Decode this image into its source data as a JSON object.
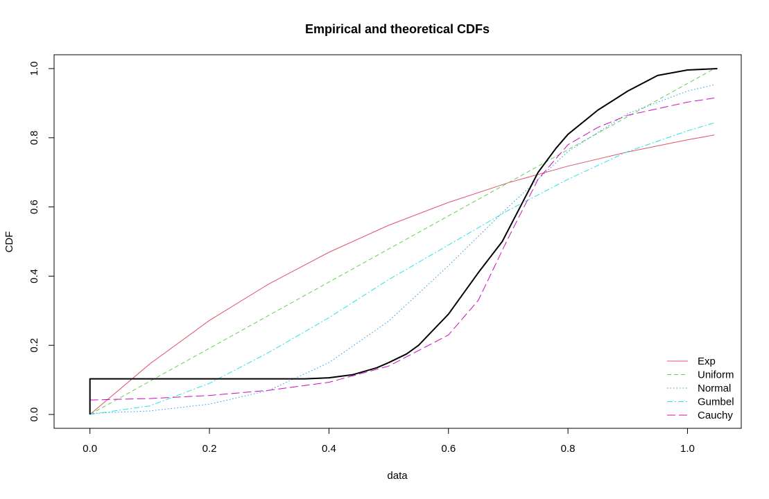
{
  "chart_data": {
    "type": "line",
    "title": "Empirical and theoretical CDFs",
    "xlabel": "data",
    "ylabel": "CDF",
    "xlim": [
      -0.06,
      1.09
    ],
    "ylim": [
      -0.04,
      1.04
    ],
    "x_ticks": [
      0.0,
      0.2,
      0.4,
      0.6,
      0.8,
      1.0
    ],
    "x_tick_labels": [
      "0.0",
      "0.2",
      "0.4",
      "0.6",
      "0.8",
      "1.0"
    ],
    "y_ticks": [
      0.0,
      0.2,
      0.4,
      0.6,
      0.8,
      1.0
    ],
    "y_tick_labels": [
      "0.0",
      "0.2",
      "0.4",
      "0.6",
      "0.8",
      "1.0"
    ],
    "grid": false,
    "legend_position": "bottom-right",
    "empirical": {
      "color": "#000000",
      "points": [
        [
          0.0,
          0.0
        ],
        [
          0.0,
          0.103
        ],
        [
          0.1,
          0.103
        ],
        [
          0.2,
          0.103
        ],
        [
          0.3,
          0.103
        ],
        [
          0.36,
          0.103
        ],
        [
          0.4,
          0.106
        ],
        [
          0.44,
          0.115
        ],
        [
          0.48,
          0.135
        ],
        [
          0.5,
          0.15
        ],
        [
          0.53,
          0.175
        ],
        [
          0.55,
          0.2
        ],
        [
          0.6,
          0.29
        ],
        [
          0.65,
          0.41
        ],
        [
          0.69,
          0.5
        ],
        [
          0.72,
          0.6
        ],
        [
          0.75,
          0.7
        ],
        [
          0.78,
          0.77
        ],
        [
          0.8,
          0.81
        ],
        [
          0.85,
          0.88
        ],
        [
          0.9,
          0.935
        ],
        [
          0.95,
          0.98
        ],
        [
          1.0,
          0.996
        ],
        [
          1.05,
          1.0
        ]
      ]
    },
    "series": [
      {
        "name": "Exp",
        "color": "#DF536B",
        "dash": "",
        "points": [
          [
            0.0,
            0.0
          ],
          [
            0.1,
            0.146
          ],
          [
            0.2,
            0.272
          ],
          [
            0.3,
            0.378
          ],
          [
            0.4,
            0.469
          ],
          [
            0.5,
            0.547
          ],
          [
            0.6,
            0.613
          ],
          [
            0.7,
            0.67
          ],
          [
            0.8,
            0.718
          ],
          [
            0.9,
            0.759
          ],
          [
            1.0,
            0.794
          ],
          [
            1.045,
            0.808
          ]
        ]
      },
      {
        "name": "Uniform",
        "color": "#61D04F",
        "dash": "6,4",
        "points": [
          [
            0.0,
            0.0
          ],
          [
            1.045,
            1.0
          ]
        ]
      },
      {
        "name": "Normal",
        "color": "#2297E6",
        "dash": "1.5,3",
        "points": [
          [
            0.0,
            0.003
          ],
          [
            0.1,
            0.01
          ],
          [
            0.2,
            0.03
          ],
          [
            0.3,
            0.07
          ],
          [
            0.4,
            0.15
          ],
          [
            0.5,
            0.27
          ],
          [
            0.6,
            0.43
          ],
          [
            0.7,
            0.6
          ],
          [
            0.8,
            0.76
          ],
          [
            0.9,
            0.87
          ],
          [
            1.0,
            0.935
          ],
          [
            1.045,
            0.953
          ]
        ]
      },
      {
        "name": "Gumbel",
        "color": "#28E2E5",
        "dash": "8,3,2,3",
        "points": [
          [
            0.0,
            0.0
          ],
          [
            0.1,
            0.025
          ],
          [
            0.2,
            0.09
          ],
          [
            0.3,
            0.18
          ],
          [
            0.4,
            0.28
          ],
          [
            0.5,
            0.39
          ],
          [
            0.6,
            0.49
          ],
          [
            0.7,
            0.59
          ],
          [
            0.8,
            0.68
          ],
          [
            0.9,
            0.76
          ],
          [
            1.0,
            0.82
          ],
          [
            1.045,
            0.843
          ]
        ]
      },
      {
        "name": "Cauchy",
        "color": "#CD0BBC",
        "dash": "12,5",
        "points": [
          [
            0.0,
            0.042
          ],
          [
            0.1,
            0.046
          ],
          [
            0.2,
            0.055
          ],
          [
            0.3,
            0.07
          ],
          [
            0.4,
            0.093
          ],
          [
            0.5,
            0.14
          ],
          [
            0.6,
            0.23
          ],
          [
            0.65,
            0.33
          ],
          [
            0.7,
            0.51
          ],
          [
            0.75,
            0.68
          ],
          [
            0.8,
            0.78
          ],
          [
            0.85,
            0.83
          ],
          [
            0.9,
            0.865
          ],
          [
            1.0,
            0.903
          ],
          [
            1.045,
            0.915
          ]
        ]
      }
    ]
  }
}
